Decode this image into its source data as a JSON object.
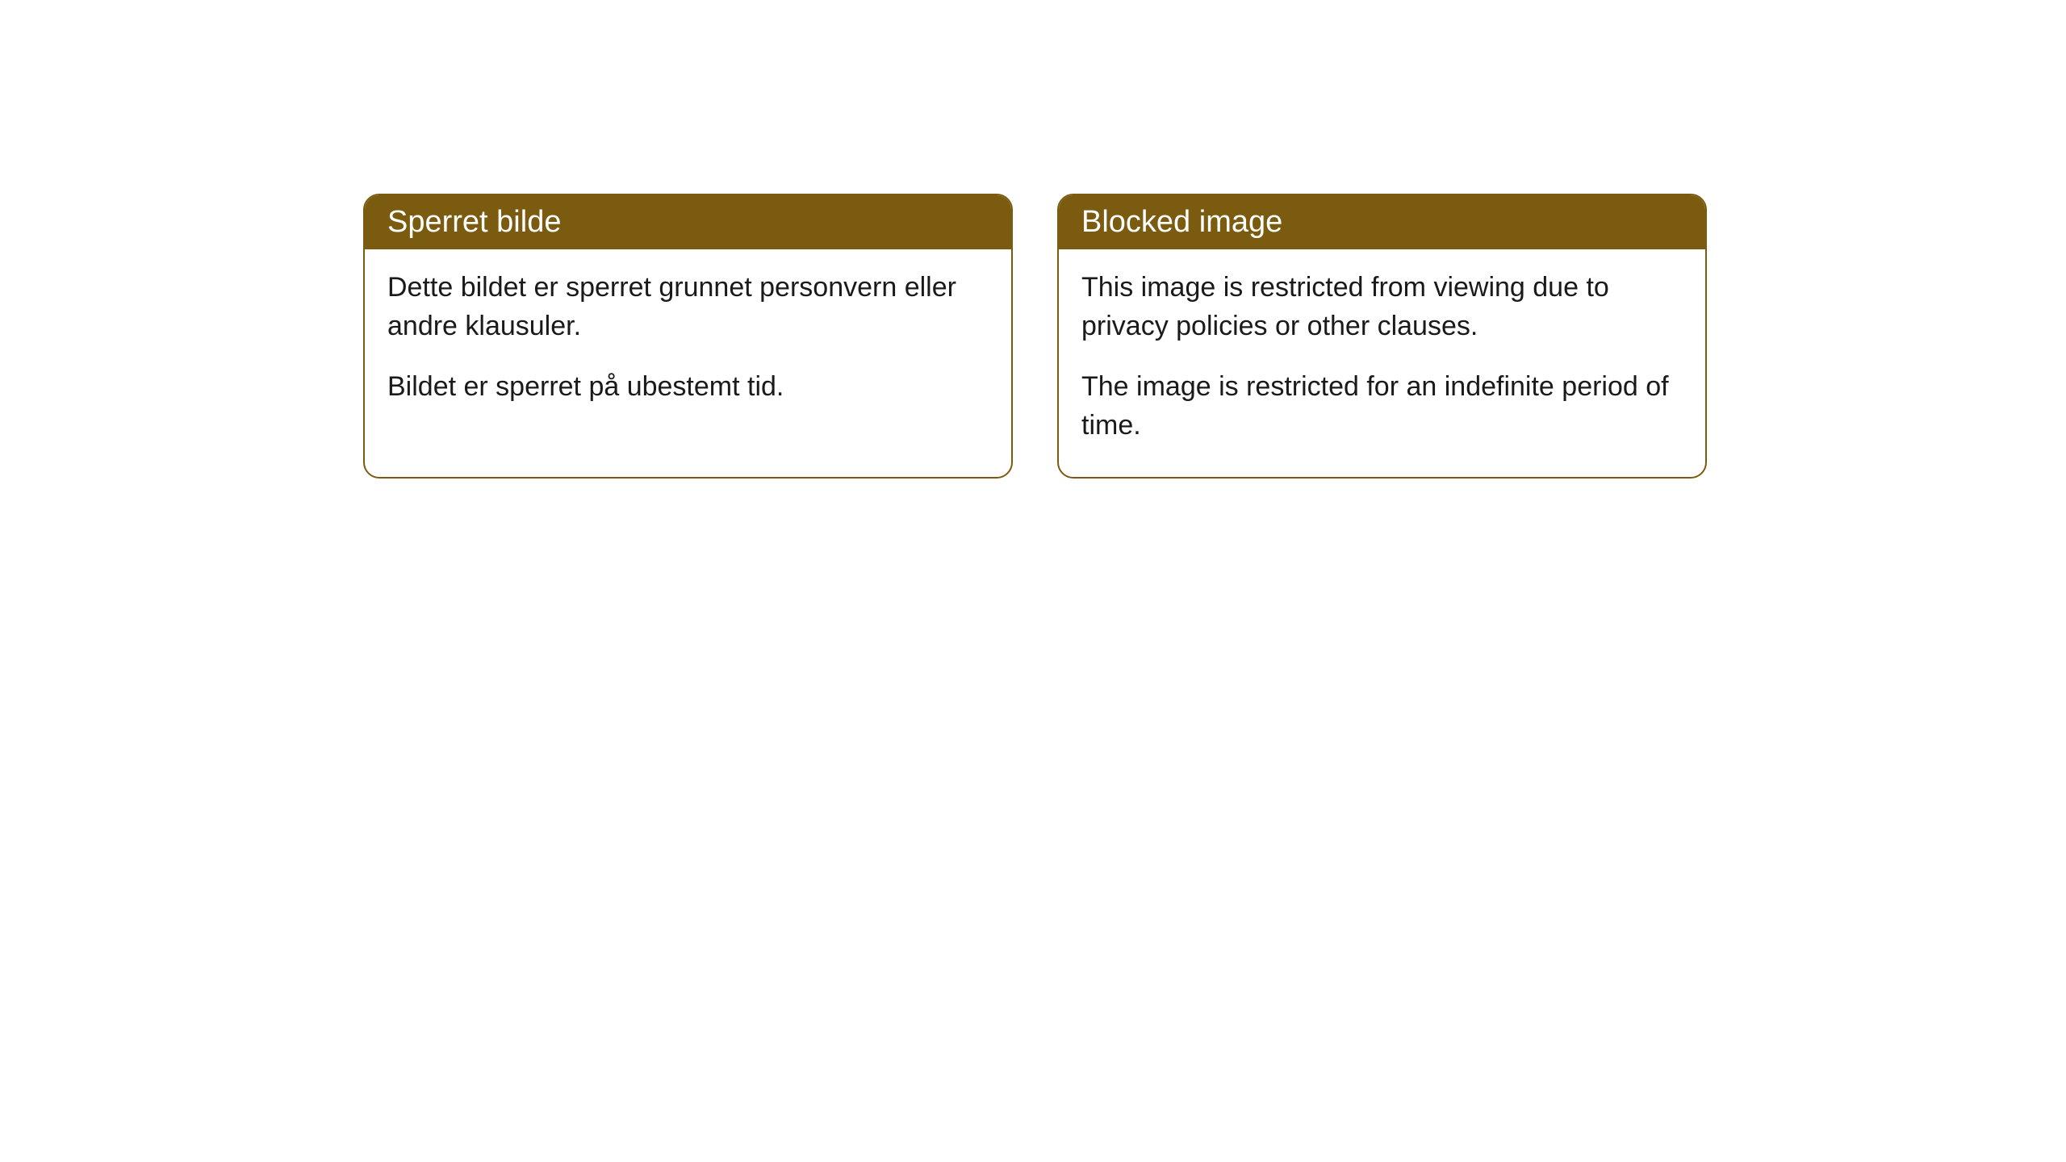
{
  "cards": [
    {
      "title": "Sperret bilde",
      "paragraph1": "Dette bildet er sperret grunnet personvern eller andre klausuler.",
      "paragraph2": "Bildet er sperret på ubestemt tid."
    },
    {
      "title": "Blocked image",
      "paragraph1": "This image is restricted from viewing due to privacy policies or other clauses.",
      "paragraph2": "The image is restricted for an indefinite period of time."
    }
  ],
  "styling": {
    "header_bg_color": "#7a5b10",
    "header_text_color": "#ffffff",
    "border_color": "#7a5b10",
    "body_bg_color": "#ffffff",
    "body_text_color": "#1a1a1a",
    "border_radius": 20,
    "header_fontsize": 38,
    "body_fontsize": 34
  }
}
